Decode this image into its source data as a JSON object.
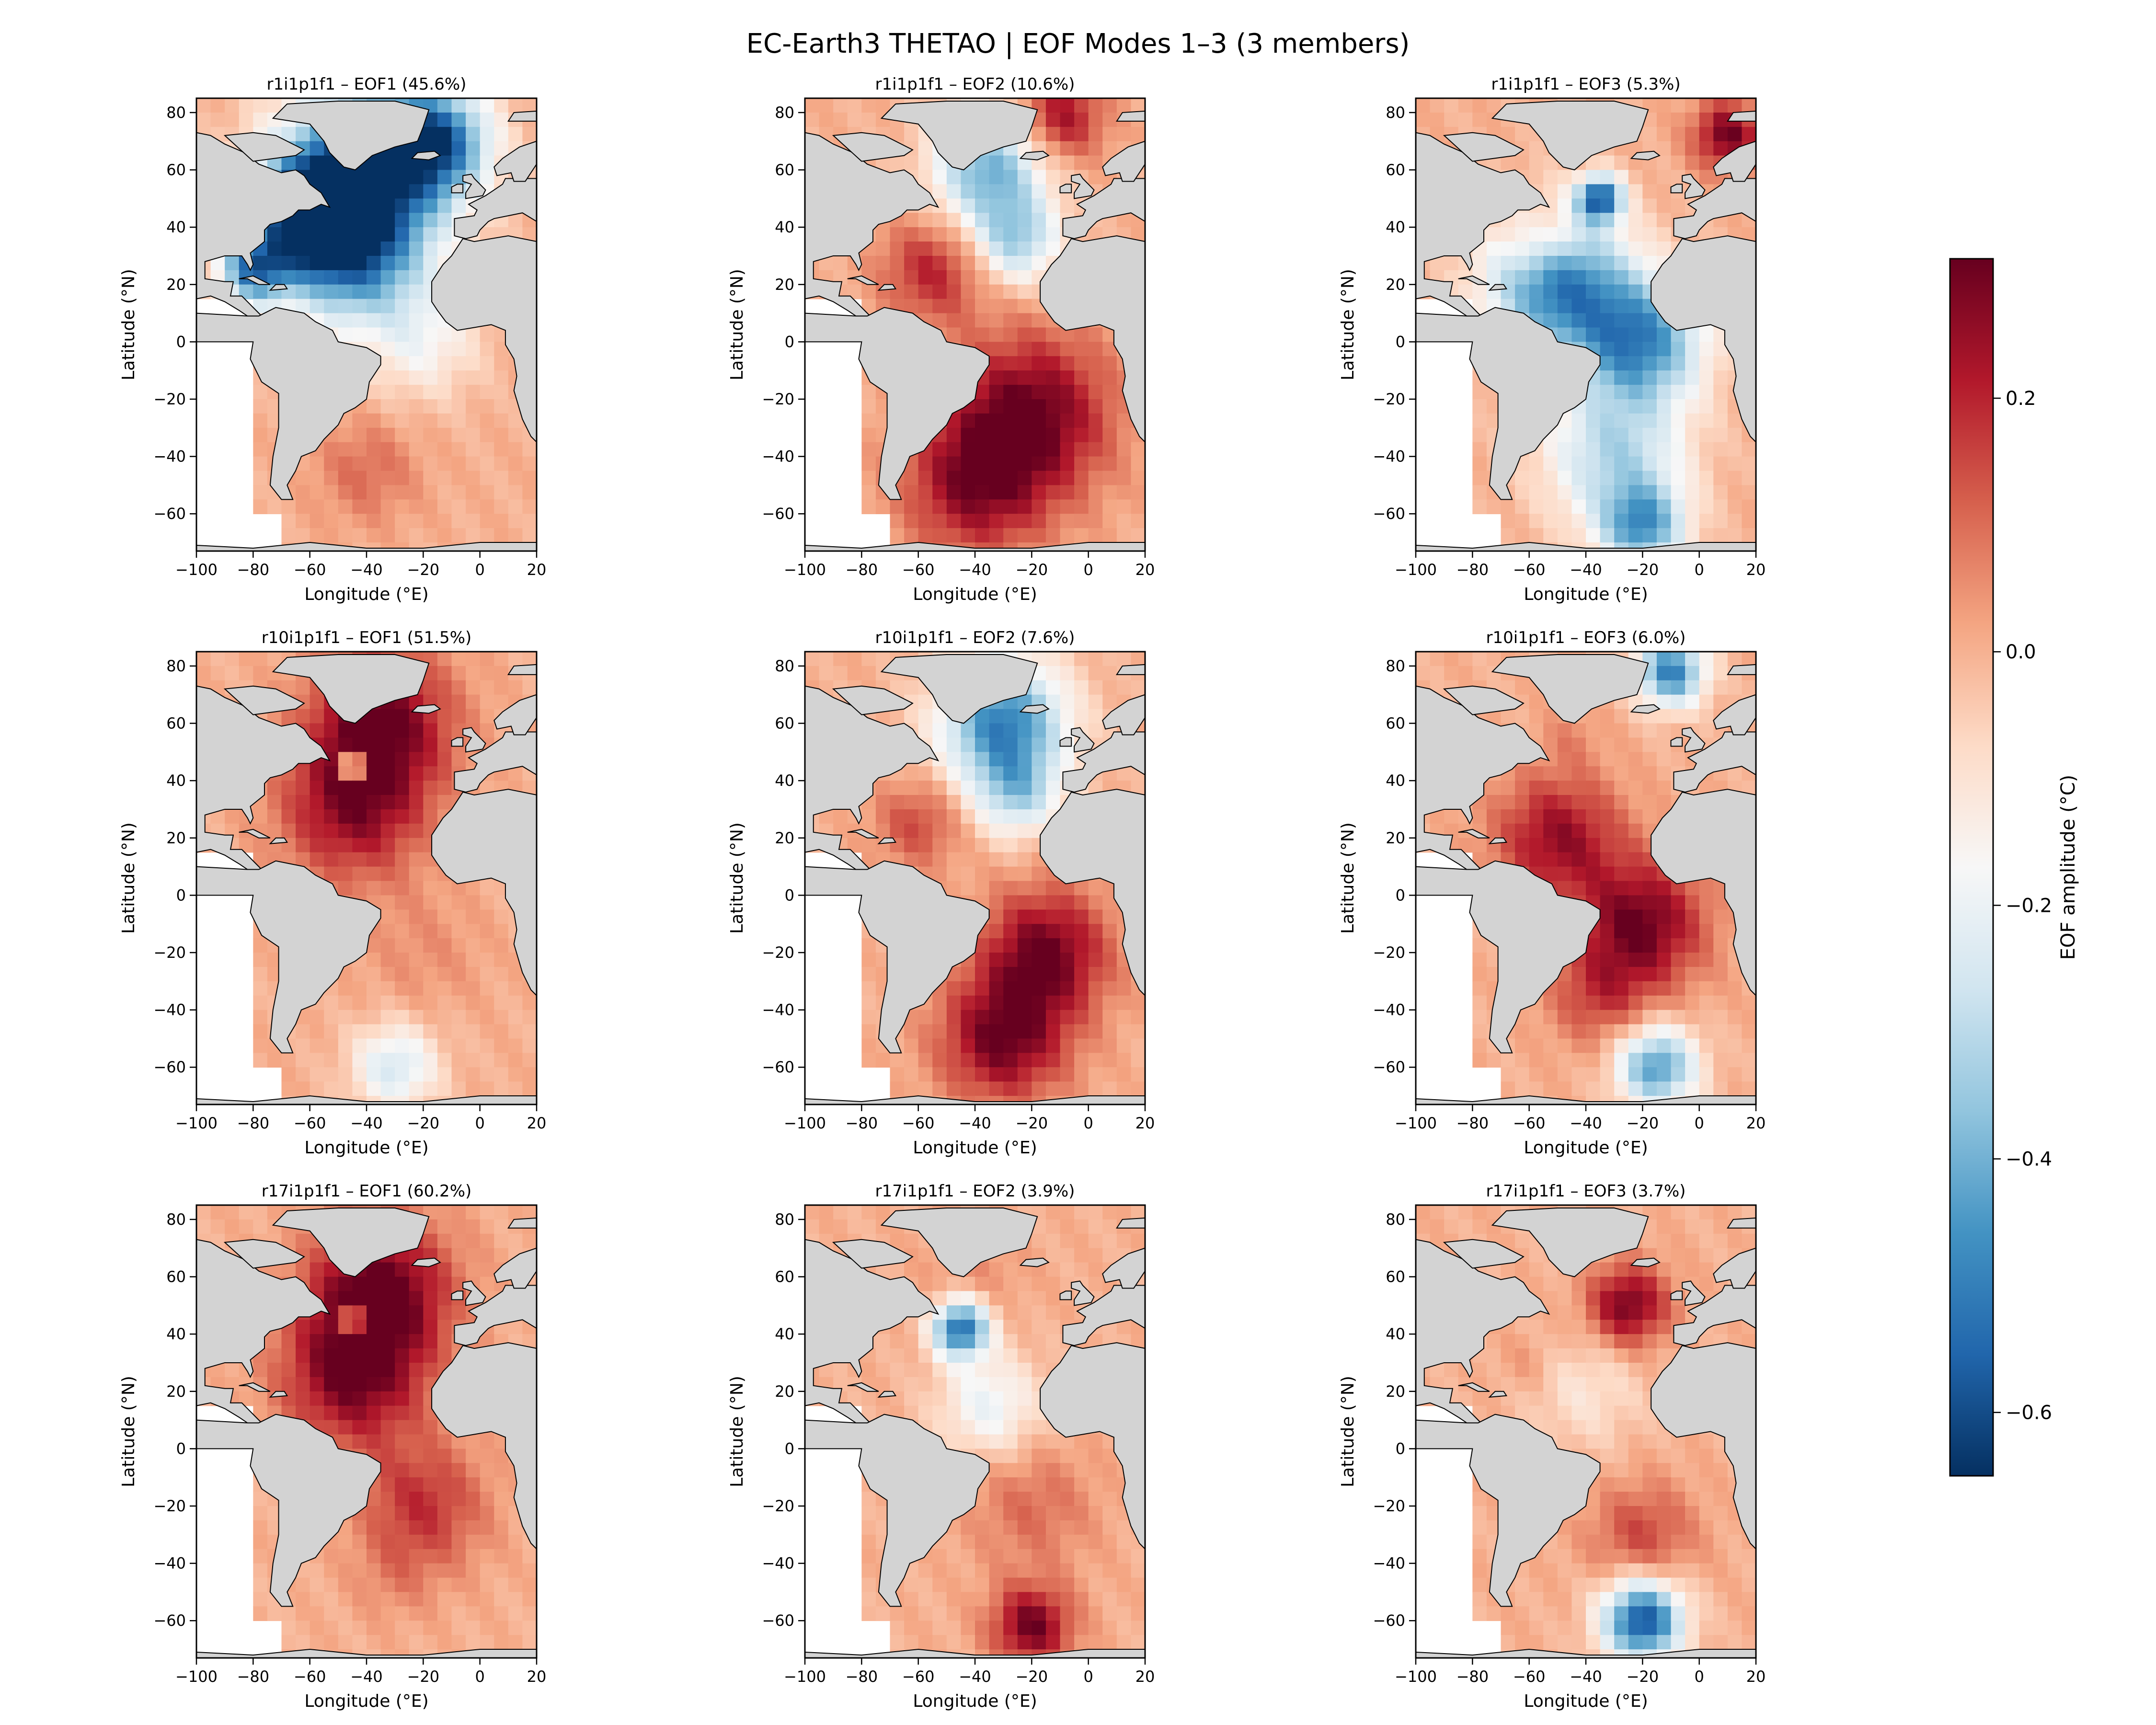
{
  "figure": {
    "title": "EC-Earth3 THETAO | EOF Modes 1–3 (3 members)"
  },
  "colorbar": {
    "label": "EOF amplitude (°C)",
    "colormap": "RdBu_r",
    "vmin": -0.65,
    "vmax": 0.31,
    "ticks": [
      0.2,
      0.0,
      -0.2,
      -0.4,
      -0.6
    ],
    "tick_labels": [
      "0.2",
      "0.0",
      "−0.2",
      "−0.4",
      "−0.6"
    ]
  },
  "colors": {
    "land": "#d3d3d3",
    "coast": "#000000",
    "cmap_stops": [
      "#67001f",
      "#b2182b",
      "#d6604d",
      "#f4a582",
      "#fddbc7",
      "#f7f7f7",
      "#d1e5f0",
      "#92c5de",
      "#4393c3",
      "#2166ac",
      "#053061"
    ]
  },
  "chart_data": [
    {
      "type": "heatmap",
      "title": "r1i1p1f1 – EOF1 (45.6%)",
      "member": "r1i1p1f1",
      "mode": "EOF1",
      "variance_pct": 45.6,
      "xlabel": "Longitude (°E)",
      "ylabel": "Latitude (°N)",
      "xlim": [
        -100,
        20
      ],
      "ylim": [
        -73,
        85
      ],
      "xticks": [
        -100,
        -80,
        -60,
        -40,
        -20,
        0,
        20
      ],
      "yticks": [
        -60,
        -40,
        -20,
        0,
        20,
        40,
        60,
        80
      ],
      "features": [
        {
          "lon": -40,
          "lat": 60,
          "value": -0.55,
          "spread": 30
        },
        {
          "lon": -60,
          "lat": 45,
          "value": -0.5,
          "spread": 20
        },
        {
          "lon": -45,
          "lat": 30,
          "value": -0.4,
          "spread": 25
        },
        {
          "lon": -80,
          "lat": 25,
          "value": -0.45,
          "spread": 12
        },
        {
          "lon": -15,
          "lat": 70,
          "value": -0.45,
          "spread": 18
        },
        {
          "lon": -20,
          "lat": 0,
          "value": -0.15,
          "spread": 20
        },
        {
          "lon": -35,
          "lat": -25,
          "value": 0.0,
          "spread": 20
        },
        {
          "lon": -40,
          "lat": -45,
          "value": 0.1,
          "spread": 18
        },
        {
          "lon": -50,
          "lat": 45,
          "value": 0.3,
          "spread": 4
        }
      ]
    },
    {
      "type": "heatmap",
      "title": "r1i1p1f1 – EOF2 (10.6%)",
      "member": "r1i1p1f1",
      "mode": "EOF2",
      "variance_pct": 10.6,
      "xlabel": "Longitude (°E)",
      "ylabel": "Latitude (°N)",
      "xlim": [
        -100,
        20
      ],
      "ylim": [
        -73,
        85
      ],
      "xticks": [
        -100,
        -80,
        -60,
        -40,
        -20,
        0,
        20
      ],
      "yticks": [
        -60,
        -40,
        -20,
        0,
        20,
        40,
        60,
        80
      ],
      "features": [
        {
          "lon": -20,
          "lat": -25,
          "value": 0.3,
          "spread": 28
        },
        {
          "lon": -40,
          "lat": -50,
          "value": 0.25,
          "spread": 25
        },
        {
          "lon": -55,
          "lat": 25,
          "value": 0.2,
          "spread": 18
        },
        {
          "lon": -35,
          "lat": 60,
          "value": -0.4,
          "spread": 20
        },
        {
          "lon": -25,
          "lat": 35,
          "value": -0.3,
          "spread": 15
        },
        {
          "lon": -10,
          "lat": 78,
          "value": 0.25,
          "spread": 15
        }
      ]
    },
    {
      "type": "heatmap",
      "title": "r1i1p1f1 – EOF3 (5.3%)",
      "member": "r1i1p1f1",
      "mode": "EOF3",
      "variance_pct": 5.3,
      "xlabel": "Longitude (°E)",
      "ylabel": "Latitude (°N)",
      "xlim": [
        -100,
        20
      ],
      "ylim": [
        -73,
        85
      ],
      "xticks": [
        -100,
        -80,
        -60,
        -40,
        -20,
        0,
        20
      ],
      "yticks": [
        -60,
        -40,
        -20,
        0,
        20,
        40,
        60,
        80
      ],
      "features": [
        {
          "lon": -50,
          "lat": 20,
          "value": -0.5,
          "spread": 25
        },
        {
          "lon": -20,
          "lat": 0,
          "value": -0.45,
          "spread": 22
        },
        {
          "lon": -30,
          "lat": -40,
          "value": -0.3,
          "spread": 25
        },
        {
          "lon": -20,
          "lat": -65,
          "value": -0.4,
          "spread": 15
        },
        {
          "lon": -55,
          "lat": 35,
          "value": 0.15,
          "spread": 12
        },
        {
          "lon": 10,
          "lat": 72,
          "value": 0.3,
          "spread": 12
        },
        {
          "lon": -35,
          "lat": 50,
          "value": -0.55,
          "spread": 8
        }
      ]
    },
    {
      "type": "heatmap",
      "title": "r10i1p1f1 – EOF1 (51.5%)",
      "member": "r10i1p1f1",
      "mode": "EOF1",
      "variance_pct": 51.5,
      "xlabel": "Longitude (°E)",
      "ylabel": "Latitude (°N)",
      "xlim": [
        -100,
        20
      ],
      "ylim": [
        -73,
        85
      ],
      "xticks": [
        -100,
        -80,
        -60,
        -40,
        -20,
        0,
        20
      ],
      "yticks": [
        -60,
        -40,
        -20,
        0,
        20,
        40,
        60,
        80
      ],
      "features": [
        {
          "lon": -35,
          "lat": 60,
          "value": 0.3,
          "spread": 25
        },
        {
          "lon": -45,
          "lat": 30,
          "value": 0.25,
          "spread": 25
        },
        {
          "lon": -20,
          "lat": -20,
          "value": 0.05,
          "spread": 22
        },
        {
          "lon": -30,
          "lat": -60,
          "value": -0.25,
          "spread": 15
        },
        {
          "lon": -45,
          "lat": 45,
          "value": -0.6,
          "spread": 4
        }
      ]
    },
    {
      "type": "heatmap",
      "title": "r10i1p1f1 – EOF2 (7.6%)",
      "member": "r10i1p1f1",
      "mode": "EOF2",
      "variance_pct": 7.6,
      "xlabel": "Longitude (°E)",
      "ylabel": "Latitude (°N)",
      "xlim": [
        -100,
        20
      ],
      "ylim": [
        -73,
        85
      ],
      "xticks": [
        -100,
        -80,
        -60,
        -40,
        -20,
        0,
        20
      ],
      "yticks": [
        -60,
        -40,
        -20,
        0,
        20,
        40,
        60,
        80
      ],
      "features": [
        {
          "lon": -30,
          "lat": 60,
          "value": -0.5,
          "spread": 22
        },
        {
          "lon": -25,
          "lat": 35,
          "value": -0.25,
          "spread": 15
        },
        {
          "lon": -60,
          "lat": 25,
          "value": 0.15,
          "spread": 15
        },
        {
          "lon": -15,
          "lat": -20,
          "value": 0.3,
          "spread": 22
        },
        {
          "lon": -30,
          "lat": -50,
          "value": 0.3,
          "spread": 22
        }
      ]
    },
    {
      "type": "heatmap",
      "title": "r10i1p1f1 – EOF3 (6.0%)",
      "member": "r10i1p1f1",
      "mode": "EOF3",
      "variance_pct": 6.0,
      "xlabel": "Longitude (°E)",
      "ylabel": "Latitude (°N)",
      "xlim": [
        -100,
        20
      ],
      "ylim": [
        -73,
        85
      ],
      "xticks": [
        -100,
        -80,
        -60,
        -40,
        -20,
        0,
        20
      ],
      "yticks": [
        -60,
        -40,
        -20,
        0,
        20,
        40,
        60,
        80
      ],
      "features": [
        {
          "lon": -50,
          "lat": 20,
          "value": 0.25,
          "spread": 22
        },
        {
          "lon": -20,
          "lat": -10,
          "value": 0.3,
          "spread": 22
        },
        {
          "lon": -35,
          "lat": -35,
          "value": 0.15,
          "spread": 18
        },
        {
          "lon": -15,
          "lat": -60,
          "value": -0.45,
          "spread": 14
        },
        {
          "lon": -10,
          "lat": 78,
          "value": -0.5,
          "spread": 12
        },
        {
          "lon": -45,
          "lat": 55,
          "value": 0.05,
          "spread": 10
        }
      ]
    },
    {
      "type": "heatmap",
      "title": "r17i1p1f1 – EOF1 (60.2%)",
      "member": "r17i1p1f1",
      "mode": "EOF1",
      "variance_pct": 60.2,
      "xlabel": "Longitude (°E)",
      "ylabel": "Latitude (°N)",
      "xlim": [
        -100,
        20
      ],
      "ylim": [
        -73,
        85
      ],
      "xticks": [
        -100,
        -80,
        -60,
        -40,
        -20,
        0,
        20
      ],
      "yticks": [
        -60,
        -40,
        -20,
        0,
        20,
        40,
        60,
        80
      ],
      "features": [
        {
          "lon": -35,
          "lat": 55,
          "value": 0.32,
          "spread": 25
        },
        {
          "lon": -45,
          "lat": 25,
          "value": 0.28,
          "spread": 25
        },
        {
          "lon": -20,
          "lat": -20,
          "value": 0.18,
          "spread": 22
        },
        {
          "lon": -30,
          "lat": -45,
          "value": 0.05,
          "spread": 15
        },
        {
          "lon": -45,
          "lat": 45,
          "value": -0.5,
          "spread": 4
        }
      ]
    },
    {
      "type": "heatmap",
      "title": "r17i1p1f1 – EOF2 (3.9%)",
      "member": "r17i1p1f1",
      "mode": "EOF2",
      "variance_pct": 3.9,
      "xlabel": "Longitude (°E)",
      "ylabel": "Latitude (°N)",
      "xlim": [
        -100,
        20
      ],
      "ylim": [
        -73,
        85
      ],
      "xticks": [
        -100,
        -80,
        -60,
        -40,
        -20,
        0,
        20
      ],
      "yticks": [
        -60,
        -40,
        -20,
        0,
        20,
        40,
        60,
        80
      ],
      "features": [
        {
          "lon": -45,
          "lat": 42,
          "value": -0.55,
          "spread": 10
        },
        {
          "lon": -35,
          "lat": 15,
          "value": -0.2,
          "spread": 18
        },
        {
          "lon": -20,
          "lat": -20,
          "value": 0.1,
          "spread": 22
        },
        {
          "lon": -20,
          "lat": -62,
          "value": 0.3,
          "spread": 14
        },
        {
          "lon": -40,
          "lat": 60,
          "value": 0.05,
          "spread": 18
        }
      ]
    },
    {
      "type": "heatmap",
      "title": "r17i1p1f1 – EOF3 (3.7%)",
      "member": "r17i1p1f1",
      "mode": "EOF3",
      "variance_pct": 3.7,
      "xlabel": "Longitude (°E)",
      "ylabel": "Latitude (°N)",
      "xlim": [
        -100,
        20
      ],
      "ylim": [
        -73,
        85
      ],
      "xticks": [
        -100,
        -80,
        -60,
        -40,
        -20,
        0,
        20
      ],
      "yticks": [
        -60,
        -40,
        -20,
        0,
        20,
        40,
        60,
        80
      ],
      "features": [
        {
          "lon": -25,
          "lat": 50,
          "value": 0.3,
          "spread": 14
        },
        {
          "lon": -40,
          "lat": 20,
          "value": -0.1,
          "spread": 20
        },
        {
          "lon": -20,
          "lat": -30,
          "value": 0.15,
          "spread": 18
        },
        {
          "lon": -20,
          "lat": -60,
          "value": -0.6,
          "spread": 14
        },
        {
          "lon": -60,
          "lat": 30,
          "value": 0.05,
          "spread": 10
        }
      ]
    }
  ]
}
